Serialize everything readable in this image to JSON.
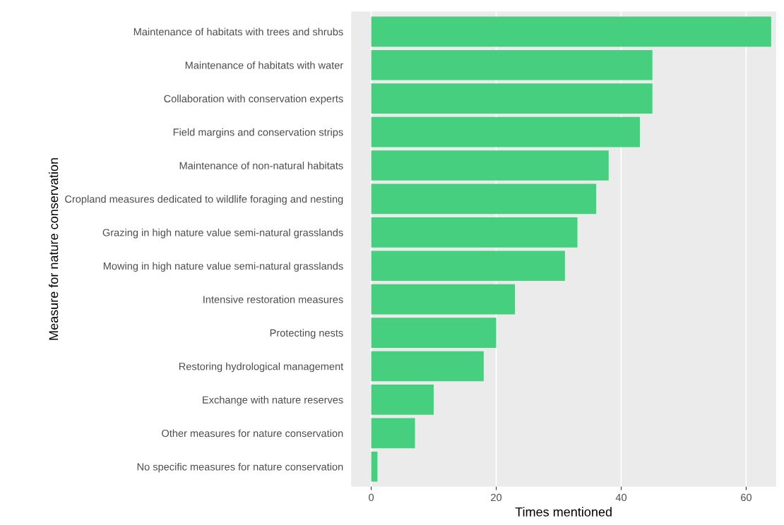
{
  "chart_data": {
    "type": "bar",
    "orientation": "horizontal",
    "xlabel": "Times mentioned",
    "ylabel": "Measure for nature conservation",
    "categories": [
      "Maintenance of habitats with trees and shrubs",
      "Maintenance of habitats with water",
      "Collaboration with conservation experts",
      "Field margins and conservation strips",
      "Maintenance of non-natural habitats",
      "Cropland measures dedicated to wildlife foraging and nesting",
      "Grazing in high nature value semi-natural grasslands",
      "Mowing in high nature value semi-natural grasslands",
      "Intensive restoration measures",
      "Protecting nests",
      "Restoring hydrological management",
      "Exchange with nature reserves",
      "Other measures for nature conservation",
      "No specific measures for nature conservation"
    ],
    "values": [
      64,
      45,
      45,
      43,
      38,
      36,
      33,
      31,
      23,
      20,
      18,
      10,
      7,
      1
    ],
    "color": "#45cf7f",
    "xlim": [
      -3.2,
      64.8
    ],
    "xticks": [
      0,
      20,
      40,
      60
    ],
    "grid": "x"
  }
}
